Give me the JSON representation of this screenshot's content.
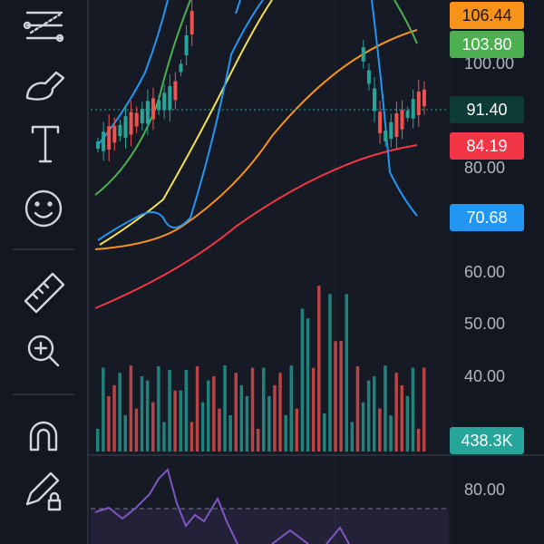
{
  "price_axis": {
    "labels": [
      "100.00",
      "80.00",
      "60.00",
      "50.00",
      "40.00"
    ]
  },
  "badges": [
    {
      "text": "106.44",
      "color": "#f7931a"
    },
    {
      "text": "103.80",
      "color": "#4caf50"
    },
    {
      "text": "91.40",
      "color": "#0d3b36"
    },
    {
      "text": "84.19",
      "color": "#f23645"
    },
    {
      "text": "70.68",
      "color": "#2196f3"
    },
    {
      "text": "438.3K",
      "color": "#26a69a"
    }
  ],
  "rsi_axis": {
    "labels": [
      "80.00"
    ]
  }
}
